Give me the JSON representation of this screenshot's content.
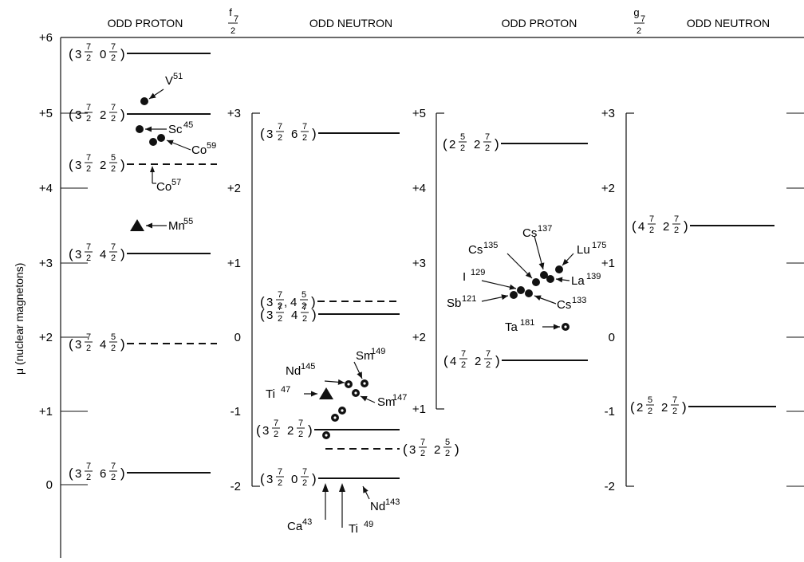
{
  "headers": {
    "p1": "ODD PROTON",
    "f_sym": "f",
    "f_sub": "7",
    "f_den": "2",
    "n1": "ODD NEUTRON",
    "p2": "ODD PROTON",
    "g_sym": "g",
    "g_sub": "7",
    "g_den": "2",
    "n2": "ODD NEUTRON"
  },
  "y_axis_label": "μ (nuclear magnetons)",
  "panels": [
    {
      "id": "f72-odd-proton",
      "ticks": [
        "+6",
        "+5",
        "+4",
        "+3",
        "+2",
        "+1",
        "0"
      ],
      "levels": [
        {
          "config": "(3 7/2 0 7/2)",
          "dashed": false
        },
        {
          "config": "(3 7/2 2 7/2)",
          "dashed": false
        },
        {
          "config": "(3 7/2 2 5/2)",
          "dashed": true
        },
        {
          "config": "(3 7/2 4 7/2)",
          "dashed": false
        },
        {
          "config": "(3 7/2 4 5/2)",
          "dashed": true
        },
        {
          "config": "(3 7/2 6 7/2)",
          "dashed": false
        }
      ],
      "nuclei": [
        "V 51",
        "Sc 45",
        "Co 59",
        "Co 57",
        "Mn 55"
      ]
    },
    {
      "id": "f72-odd-neutron",
      "ticks": [
        "+3",
        "+2",
        "+1",
        "0",
        "-1",
        "-2"
      ],
      "levels": [
        {
          "config": "(3 7/2 6 7/2)",
          "dashed": false
        },
        {
          "config": "(3 7/2, 4 5/2)",
          "dashed": true
        },
        {
          "config": "(3 7/2 4 7/2)",
          "dashed": false
        },
        {
          "config": "(3 7/2 2 7/2)",
          "dashed": false
        },
        {
          "config": "(3 7/2 2 5/2)",
          "dashed": true
        },
        {
          "config": "(3 7/2 0 7/2)",
          "dashed": false
        }
      ],
      "nuclei": [
        "Nd 145",
        "Sm 149",
        "Ti 47",
        "Sm 147",
        "Ca 43",
        "Ti 49",
        "Nd 143"
      ]
    },
    {
      "id": "g72-odd-proton",
      "ticks": [
        "+5",
        "+4",
        "+3",
        "+2",
        "+1"
      ],
      "levels": [
        {
          "config": "(2 5/2 2 7/2)",
          "dashed": false
        },
        {
          "config": "(4 7/2 2 7/2)",
          "dashed": false
        }
      ],
      "nuclei": [
        "Cs 137",
        "Cs 135",
        "Lu 175",
        "I 129",
        "La 139",
        "Sb 121",
        "Cs 133",
        "Ta 181"
      ]
    },
    {
      "id": "g72-odd-neutron",
      "ticks": [
        "+3",
        "+2",
        "+1",
        "0",
        "-1",
        "-2"
      ],
      "levels": [
        {
          "config": "(4 7/2 2 7/2)",
          "dashed": false
        },
        {
          "config": "(2 5/2 2 7/2)",
          "dashed": false
        }
      ]
    }
  ]
}
